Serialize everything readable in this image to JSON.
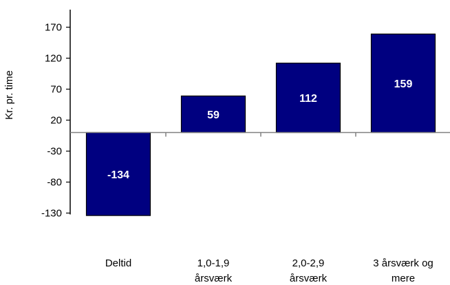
{
  "chart_data": {
    "type": "bar",
    "categories": [
      [
        "Deltid"
      ],
      [
        "1,0-1,9",
        "årsværk"
      ],
      [
        "2,0-2,9",
        "årsværk"
      ],
      [
        "3 årsværk og",
        "mere"
      ]
    ],
    "values": [
      -134,
      59,
      112,
      159
    ],
    "data_labels": [
      "-134",
      "59",
      "112",
      "159"
    ],
    "ylabel": "Kr. pr. time",
    "ylim": [
      -130,
      200
    ],
    "yticks": [
      -130,
      -80,
      -30,
      20,
      70,
      120,
      170
    ],
    "bar_color": "#000080",
    "bar_stroke": "#000000",
    "grid": false,
    "legend": "none"
  }
}
